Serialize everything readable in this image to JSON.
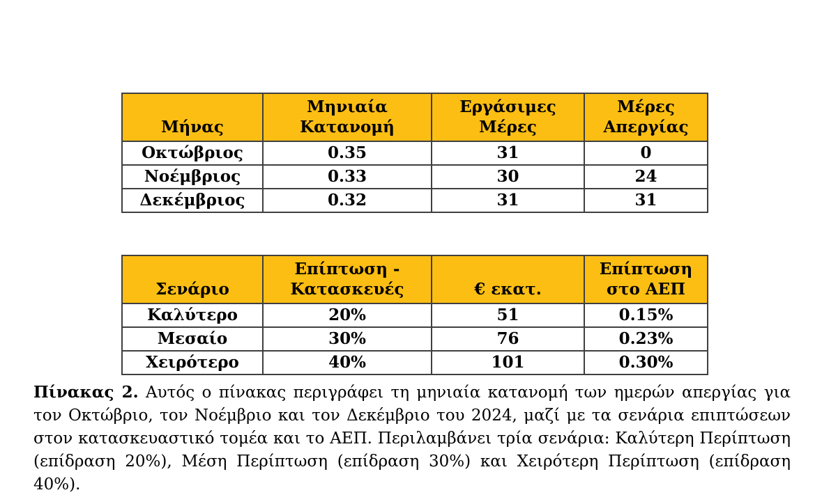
{
  "colors": {
    "header_bg": "#FCBE13",
    "border": "#3F3F3F",
    "text": "#000000",
    "page_bg": "#FFFFFF"
  },
  "table1": {
    "headers": [
      "Μήνας",
      "Μηνιαία\nΚατανομή",
      "Εργάσιμες\nΜέρες",
      "Μέρες\nΑπεργίας"
    ],
    "rows": [
      [
        "Οκτώβριος",
        "0.35",
        "31",
        "0"
      ],
      [
        "Νοέμβριος",
        "0.33",
        "30",
        "24"
      ],
      [
        "Δεκέμβριος",
        "0.32",
        "31",
        "31"
      ]
    ]
  },
  "table2": {
    "headers": [
      "Σενάριο",
      "Επίπτωση -\nΚατασκευές",
      "€ εκατ.",
      "Επίπτωση\nστο ΑΕΠ"
    ],
    "rows": [
      [
        "Καλύτερο",
        "20%",
        "51",
        "0.15%"
      ],
      [
        "Μεσαίο",
        "30%",
        "76",
        "0.23%"
      ],
      [
        "Χειρότερο",
        "40%",
        "101",
        "0.30%"
      ]
    ]
  },
  "caption": {
    "label": "Πίνακας 2.",
    "text": "Αυτός ο πίνακας περιγράφει τη μηνιαία κατανομή των ημερών απεργίας για τον Οκτώβριο, τον Νοέμβριο και τον Δεκέμβριο του 2024, μαζί με τα σενάρια επιπτώσεων στον κατασκευαστικό τομέα και το ΑΕΠ. Περιλαμβάνει τρία σενάρια: Καλύτερη Περίπτωση (επίδραση 20%), Μέση Περίπτωση (επίδραση 30%) και Χειρότερη Περίπτωση (επίδραση 40%)."
  }
}
